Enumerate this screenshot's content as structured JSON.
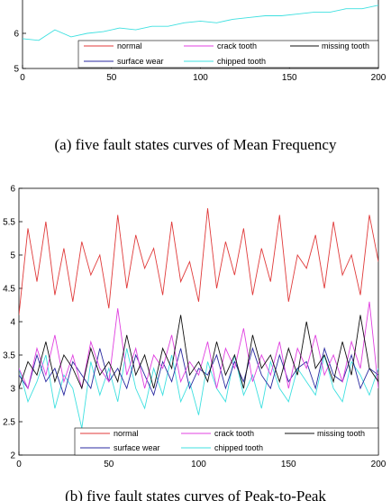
{
  "colors": {
    "normal": "#e03a3a",
    "crack_tooth": "#e040e0",
    "missing_tooth": "#111111",
    "surface_wear": "#2a2aa0",
    "chipped_tooth": "#3fe0e0"
  },
  "chart_data": [
    {
      "type": "line",
      "caption": "(a) five fault states curves of Mean Frequency",
      "xlim": [
        0,
        200
      ],
      "ylim": [
        5,
        7
      ],
      "xticks": [
        "0",
        "50",
        "100",
        "150",
        "200"
      ],
      "yticks": [
        "5",
        "6"
      ],
      "legend": "bottom-right",
      "series": [
        {
          "name": "normal",
          "values": []
        },
        {
          "name": "crack tooth",
          "values": []
        },
        {
          "name": "missing tooth",
          "values": []
        },
        {
          "name": "surface wear",
          "values": []
        },
        {
          "name": "chipped tooth",
          "values": [
            5.85,
            5.8,
            6.1,
            5.9,
            6.0,
            6.05,
            6.15,
            6.1,
            6.2,
            6.2,
            6.3,
            6.35,
            6.3,
            6.4,
            6.45,
            6.5,
            6.5,
            6.55,
            6.6,
            6.6,
            6.7,
            6.7,
            6.8
          ]
        }
      ]
    },
    {
      "type": "line",
      "caption": "(b) five fault states curves of Peak-to-Peak",
      "xlim": [
        0,
        200
      ],
      "ylim": [
        2,
        6
      ],
      "xticks": [
        "0",
        "50",
        "100",
        "150",
        "200"
      ],
      "yticks": [
        "2",
        "2.5",
        "3",
        "3.5",
        "4",
        "4.5",
        "5",
        "5.5",
        "6"
      ],
      "legend": "bottom-right",
      "series": [
        {
          "name": "normal",
          "values": [
            4.1,
            5.4,
            4.6,
            5.5,
            4.4,
            5.1,
            4.3,
            5.2,
            4.7,
            5.0,
            4.2,
            5.6,
            4.5,
            5.3,
            4.8,
            5.1,
            4.4,
            5.5,
            4.6,
            4.9,
            4.3,
            5.7,
            4.5,
            5.2,
            4.7,
            5.4,
            4.4,
            5.1,
            4.6,
            5.6,
            4.3,
            5.0,
            4.8,
            5.3,
            4.5,
            5.5,
            4.7,
            5.0,
            4.4,
            5.6,
            4.9
          ]
        },
        {
          "name": "crack tooth",
          "values": [
            3.3,
            3.0,
            3.6,
            3.2,
            3.8,
            3.1,
            3.5,
            3.0,
            3.7,
            3.3,
            3.1,
            4.2,
            3.2,
            3.6,
            3.0,
            3.5,
            3.3,
            3.8,
            3.1,
            3.4,
            3.2,
            3.7,
            3.0,
            3.6,
            3.3,
            3.9,
            3.1,
            3.5,
            3.2,
            3.7,
            3.0,
            3.6,
            3.3,
            3.8,
            3.2,
            3.5,
            3.1,
            3.7,
            3.3,
            4.3,
            3.0
          ]
        },
        {
          "name": "missing tooth",
          "values": [
            3.0,
            3.4,
            3.2,
            3.7,
            3.1,
            3.5,
            3.3,
            3.0,
            3.6,
            3.2,
            3.4,
            3.1,
            3.8,
            3.2,
            3.5,
            3.0,
            3.6,
            3.3,
            4.1,
            3.2,
            3.4,
            3.1,
            3.7,
            3.2,
            3.5,
            3.0,
            3.8,
            3.3,
            3.5,
            3.1,
            3.6,
            3.2,
            4.0,
            3.3,
            3.5,
            3.1,
            3.7,
            3.2,
            4.1,
            3.3,
            3.1
          ]
        },
        {
          "name": "surface wear",
          "values": [
            3.2,
            3.0,
            3.5,
            3.1,
            3.3,
            2.9,
            3.4,
            3.2,
            3.0,
            3.6,
            3.1,
            3.3,
            3.0,
            3.5,
            3.2,
            2.9,
            3.4,
            3.1,
            3.6,
            3.0,
            3.3,
            3.2,
            3.5,
            3.0,
            3.4,
            3.1,
            3.6,
            3.2,
            3.0,
            3.5,
            3.1,
            3.3,
            3.4,
            3.0,
            3.6,
            3.2,
            3.1,
            3.5,
            3.0,
            3.3,
            3.2
          ]
        },
        {
          "name": "chipped tooth",
          "values": [
            3.3,
            2.8,
            3.1,
            3.5,
            2.7,
            3.2,
            3.0,
            2.4,
            3.4,
            2.9,
            3.3,
            2.8,
            3.6,
            3.0,
            2.7,
            3.3,
            2.9,
            3.5,
            2.8,
            3.1,
            2.6,
            3.4,
            3.0,
            2.8,
            3.5,
            2.9,
            3.2,
            2.7,
            3.4,
            3.0,
            2.8,
            3.3,
            3.1,
            2.9,
            3.5,
            3.0,
            2.8,
            3.4,
            3.2,
            2.9,
            3.3
          ]
        }
      ]
    }
  ]
}
